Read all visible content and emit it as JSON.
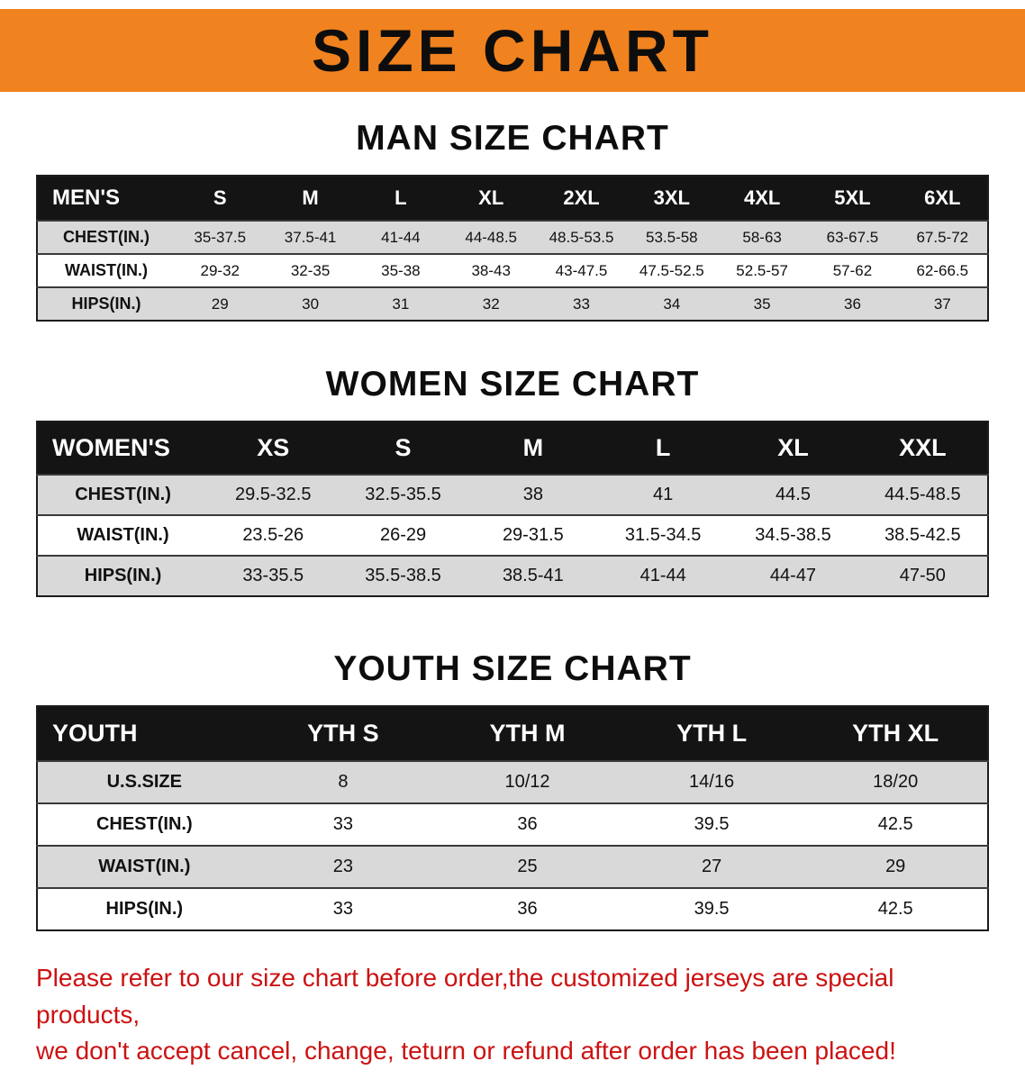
{
  "banner": {
    "title": "SIZE CHART"
  },
  "colors": {
    "banner_bg": "#f0821f",
    "header_bg": "#141414",
    "row_gray": "#d9d9d9",
    "disclaimer_red": "#cc1212"
  },
  "sections": [
    {
      "id": "men",
      "heading": "MAN SIZE CHART",
      "table": {
        "header": [
          "MEN'S",
          "S",
          "M",
          "L",
          "XL",
          "2XL",
          "3XL",
          "4XL",
          "5XL",
          "6XL"
        ],
        "rows": [
          [
            "CHEST(IN.)",
            "35-37.5",
            "37.5-41",
            "41-44",
            "44-48.5",
            "48.5-53.5",
            "53.5-58",
            "58-63",
            "63-67.5",
            "67.5-72"
          ],
          [
            "WAIST(IN.)",
            "29-32",
            "32-35",
            "35-38",
            "38-43",
            "43-47.5",
            "47.5-52.5",
            "52.5-57",
            "57-62",
            "62-66.5"
          ],
          [
            "HIPS(IN.)",
            "29",
            "30",
            "31",
            "32",
            "33",
            "34",
            "35",
            "36",
            "37"
          ]
        ]
      }
    },
    {
      "id": "women",
      "heading": "WOMEN SIZE CHART",
      "table": {
        "header": [
          "WOMEN'S",
          "XS",
          "S",
          "M",
          "L",
          "XL",
          "XXL"
        ],
        "rows": [
          [
            "CHEST(IN.)",
            "29.5-32.5",
            "32.5-35.5",
            "38",
            "41",
            "44.5",
            "44.5-48.5"
          ],
          [
            "WAIST(IN.)",
            "23.5-26",
            "26-29",
            "29-31.5",
            "31.5-34.5",
            "34.5-38.5",
            "38.5-42.5"
          ],
          [
            "HIPS(IN.)",
            "33-35.5",
            "35.5-38.5",
            "38.5-41",
            "41-44",
            "44-47",
            "47-50"
          ]
        ]
      }
    },
    {
      "id": "youth",
      "heading": "YOUTH SIZE CHART",
      "table": {
        "header": [
          "YOUTH",
          "YTH S",
          "YTH M",
          "YTH L",
          "YTH XL"
        ],
        "rows": [
          [
            "U.S.SIZE",
            "8",
            "10/12",
            "14/16",
            "18/20"
          ],
          [
            "CHEST(IN.)",
            "33",
            "36",
            "39.5",
            "42.5"
          ],
          [
            "WAIST(IN.)",
            "23",
            "25",
            "27",
            "29"
          ],
          [
            "HIPS(IN.)",
            "33",
            "36",
            "39.5",
            "42.5"
          ]
        ]
      }
    }
  ],
  "disclaimer": {
    "line1": "Please refer to our size chart before order,the customized jerseys are special products,",
    "line2": "we don't accept cancel, change, teturn or refund after order has been placed!"
  }
}
